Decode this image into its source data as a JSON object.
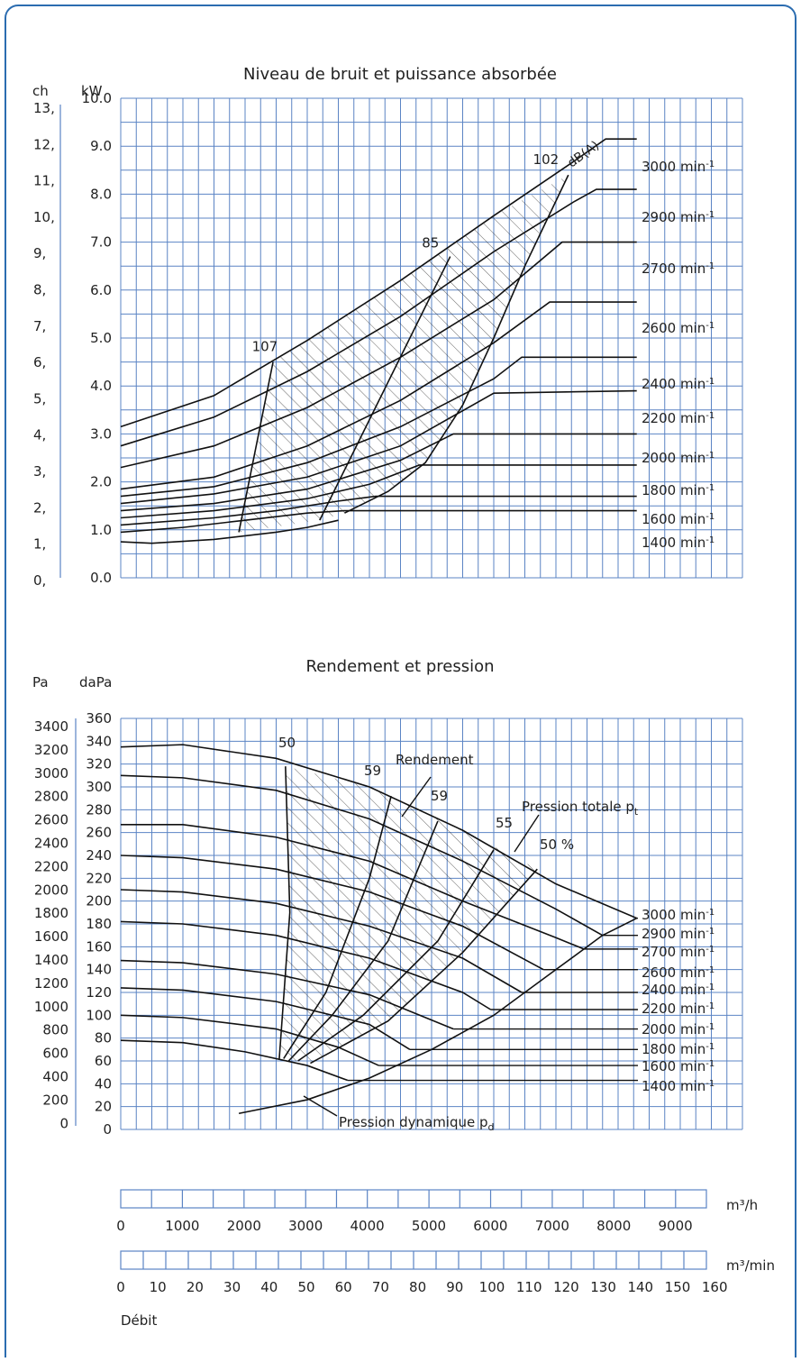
{
  "colors": {
    "frame": "#2b6cb0",
    "grid": "#5b84c4",
    "curve": "#111111"
  },
  "chart_data": [
    {
      "type": "line",
      "title": "Niveau de bruit et puissance absorbée",
      "ylabel_left": "ch",
      "ylabel_right": "kW",
      "ch_ticks": [
        "13,",
        "12,",
        "11,",
        "10,",
        "9,",
        "8,",
        "7,",
        "6,",
        "5,",
        "4,",
        "3,",
        "2,",
        "1,",
        "0,"
      ],
      "kw_ticks": [
        "10.0",
        "9.0",
        "8.0",
        "7.0",
        "6.0",
        "5.0",
        "4.0",
        "3.0",
        "2.0",
        "1.0",
        "0.0"
      ],
      "ylim": [
        0,
        10
      ],
      "xlim": [
        0,
        10000
      ],
      "noise_unit": "dB(A)",
      "noise_labels": [
        "107",
        "85",
        "102"
      ],
      "speed_labels": [
        "3000 min-1",
        "2900 min-1",
        "2700 min-1",
        "2600 min-1",
        "2400 min-1",
        "2200 min-1",
        "2000 min-1",
        "1800 min-1",
        "1600 min-1",
        "1400 min-1"
      ],
      "series": [
        {
          "rpm": 3000,
          "x": [
            0,
            1500,
            3000,
            4500,
            6000,
            7250,
            7800,
            8300
          ],
          "y": [
            3.15,
            3.8,
            4.95,
            6.2,
            7.55,
            8.65,
            9.15,
            9.15
          ]
        },
        {
          "rpm": 2900,
          "x": [
            0,
            1500,
            3000,
            4500,
            6000,
            7300,
            7650,
            8300
          ],
          "y": [
            2.75,
            3.35,
            4.3,
            5.45,
            6.8,
            7.85,
            8.1,
            8.1
          ]
        },
        {
          "rpm": 2700,
          "x": [
            0,
            1500,
            3000,
            4500,
            6000,
            7100,
            8300
          ],
          "y": [
            2.3,
            2.75,
            3.55,
            4.6,
            5.8,
            7.0,
            7.0
          ]
        },
        {
          "rpm": 2600,
          "x": [
            0,
            1500,
            3000,
            4500,
            6000,
            6900,
            8300
          ],
          "y": [
            1.85,
            2.1,
            2.75,
            3.7,
            4.9,
            5.75,
            5.75
          ]
        },
        {
          "rpm": 2400,
          "x": [
            0,
            1500,
            3000,
            4500,
            6000,
            6450,
            8300
          ],
          "y": [
            1.7,
            1.9,
            2.4,
            3.15,
            4.15,
            4.6,
            4.6
          ]
        },
        {
          "rpm": 2200,
          "x": [
            0,
            1500,
            3000,
            4500,
            6000,
            8300
          ],
          "y": [
            1.55,
            1.75,
            2.1,
            2.75,
            3.85,
            3.9
          ]
        },
        {
          "rpm": 2000,
          "x": [
            0,
            1500,
            3000,
            4500,
            5350,
            8300
          ],
          "y": [
            1.4,
            1.55,
            1.85,
            2.45,
            3.0,
            3.0
          ]
        },
        {
          "rpm": 1800,
          "x": [
            0,
            1500,
            3000,
            4000,
            4800,
            8300
          ],
          "y": [
            1.25,
            1.4,
            1.65,
            1.95,
            2.35,
            2.35
          ]
        },
        {
          "rpm": 1600,
          "x": [
            0,
            1500,
            2500,
            3500,
            4100,
            8300
          ],
          "y": [
            1.1,
            1.25,
            1.4,
            1.6,
            1.7,
            1.7
          ]
        },
        {
          "rpm": 1400,
          "x": [
            0,
            1000,
            2000,
            3000,
            3600,
            8300
          ],
          "y": [
            0.95,
            1.05,
            1.2,
            1.35,
            1.4,
            1.4
          ]
        },
        {
          "name": "",
          "x": [
            0,
            500,
            1500,
            2500,
            3000,
            3500
          ],
          "y": [
            0.75,
            0.72,
            0.8,
            0.95,
            1.05,
            1.2
          ]
        }
      ],
      "iso_lines": [
        {
          "label": "107",
          "x": [
            1900,
            2450
          ],
          "y": [
            0.95,
            4.5
          ]
        },
        {
          "label": "85",
          "x": [
            3200,
            5300
          ],
          "y": [
            1.2,
            6.7
          ]
        },
        {
          "label": "102",
          "x": [
            3600,
            4300,
            4900,
            5500,
            6000,
            6500,
            7200
          ],
          "y": [
            1.35,
            1.8,
            2.4,
            3.6,
            5.0,
            6.5,
            8.4
          ]
        }
      ]
    },
    {
      "type": "line",
      "title": "Rendement et pression",
      "ylabel_left": "Pa",
      "ylabel_right": "daPa",
      "pa_ticks": [
        "3400",
        "3200",
        "3000",
        "2800",
        "2600",
        "2400",
        "2200",
        "2000",
        "1800",
        "1600",
        "1400",
        "1200",
        "1000",
        "800",
        "600",
        "400",
        "200",
        "0"
      ],
      "dapa_ticks": [
        "360",
        "340",
        "320",
        "300",
        "280",
        "260",
        "240",
        "220",
        "200",
        "180",
        "160",
        "140",
        "120",
        "100",
        "80",
        "60",
        "40",
        "20",
        "0"
      ],
      "ylim": [
        0,
        360
      ],
      "xlim": [
        0,
        10000
      ],
      "efficiency_labels": [
        "50",
        "59",
        "59",
        "55",
        "50 %"
      ],
      "annotations": {
        "efficiency": "Rendement",
        "total_pressure": "Pression totale p",
        "total_sub": "t",
        "dynamic_pressure": "Pression dynamique p",
        "dynamic_sub": "d"
      },
      "speed_labels": [
        "3000 min-1",
        "2900 min-1",
        "2700 min-1",
        "2600 min-1",
        "2400 min-1",
        "2200 min-1",
        "2000 min-1",
        "1800 min-1",
        "1600 min-1",
        "1400 min-1"
      ],
      "series": [
        {
          "rpm": 3000,
          "x": [
            0,
            1000,
            2500,
            4000,
            5500,
            7000,
            8300
          ],
          "y": [
            335,
            337,
            325,
            300,
            262,
            215,
            185
          ]
        },
        {
          "rpm": 2900,
          "x": [
            0,
            1000,
            2500,
            4000,
            5500,
            7000,
            7750
          ],
          "y": [
            310,
            308,
            297,
            272,
            235,
            193,
            170
          ]
        },
        {
          "rpm": 2700,
          "x": [
            0,
            1000,
            2500,
            4000,
            5500,
            7000,
            7450
          ],
          "y": [
            267,
            267,
            256,
            235,
            200,
            168,
            158
          ]
        },
        {
          "rpm": 2600,
          "x": [
            0,
            1000,
            2500,
            4000,
            5500,
            6800
          ],
          "y": [
            240,
            238,
            228,
            208,
            178,
            140
          ]
        },
        {
          "rpm": 2400,
          "x": [
            0,
            1000,
            2500,
            4000,
            5500,
            6450
          ],
          "y": [
            210,
            208,
            198,
            178,
            150,
            120
          ]
        },
        {
          "rpm": 2200,
          "x": [
            0,
            1000,
            2500,
            4000,
            5500,
            5950
          ],
          "y": [
            182,
            180,
            170,
            150,
            120,
            105
          ]
        },
        {
          "rpm": 2000,
          "x": [
            0,
            1000,
            2500,
            4000,
            5350
          ],
          "y": [
            148,
            146,
            136,
            118,
            88
          ]
        },
        {
          "rpm": 1800,
          "x": [
            0,
            1000,
            2500,
            4000,
            4650
          ],
          "y": [
            124,
            122,
            112,
            92,
            70
          ]
        },
        {
          "rpm": 1600,
          "x": [
            0,
            1000,
            2500,
            3500,
            4150
          ],
          "y": [
            100,
            98,
            88,
            72,
            56
          ]
        },
        {
          "rpm": 1400,
          "x": [
            0,
            1000,
            2000,
            3000,
            3650
          ],
          "y": [
            78,
            76,
            68,
            56,
            43
          ]
        }
      ],
      "dynamic_pressure_curve": {
        "x": [
          1900,
          3000,
          4000,
          5000,
          6000,
          7000,
          7750,
          8300
        ],
        "y": [
          14,
          26,
          45,
          70,
          100,
          140,
          170,
          185
        ]
      },
      "iso_lines": [
        {
          "label": "50",
          "x": [
            2550,
            2720,
            2650
          ],
          "y": [
            62,
            190,
            318
          ]
        },
        {
          "label": "59",
          "x": [
            2620,
            3300,
            4000,
            4350
          ],
          "y": [
            62,
            120,
            220,
            292
          ]
        },
        {
          "label": "59",
          "x": [
            2700,
            3400,
            4300,
            5100
          ],
          "y": [
            60,
            100,
            165,
            270
          ]
        },
        {
          "label": "55",
          "x": [
            2850,
            3900,
            5100,
            6000
          ],
          "y": [
            60,
            100,
            165,
            245
          ]
        },
        {
          "label": "50 %",
          "x": [
            3050,
            4300,
            5500,
            6700
          ],
          "y": [
            58,
            95,
            155,
            228
          ]
        }
      ]
    }
  ],
  "flow_axes": {
    "label": "Débit",
    "m3h_unit": "m³/h",
    "m3h_ticks": [
      "0",
      "1000",
      "2000",
      "3000",
      "4000",
      "5000",
      "6000",
      "7000",
      "8000",
      "9000"
    ],
    "m3min_unit": "m³/min",
    "m3min_ticks": [
      "0",
      "10",
      "20",
      "30",
      "40",
      "50",
      "60",
      "70",
      "80",
      "90",
      "100",
      "110",
      "120",
      "130",
      "140",
      "150",
      "160"
    ]
  }
}
